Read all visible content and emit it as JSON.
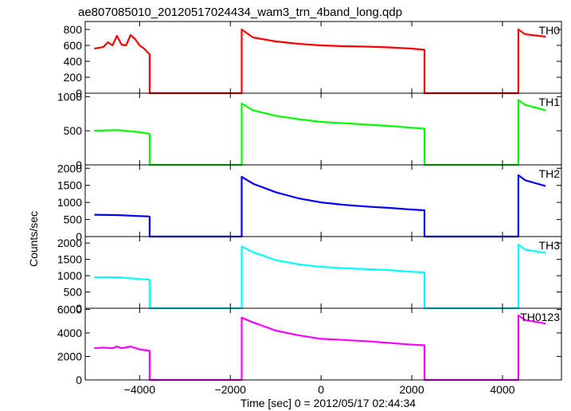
{
  "figure": {
    "title": "ae807085010_20120517024434_wam3_trn_4band_long.qdp",
    "ylabel": "Counts/sec",
    "xlabel": "Time [sec] 0 = 2012/05/17 02:44:34"
  },
  "chart_data": {
    "type": "line",
    "title": "ae807085010_20120517024434_wam3_trn_4band_long.qdp",
    "xlabel": "Time [sec] 0 = 2012/05/17 02:44:34",
    "ylabel": "Counts/sec",
    "xlim": [
      -5200,
      5300
    ],
    "xticks": [
      -4000,
      -2000,
      0,
      2000,
      4000
    ],
    "xtick_labels": [
      "−4000",
      "−2000",
      "0",
      "2000",
      "4000"
    ],
    "grid": false,
    "panels": [
      {
        "name": "TH0",
        "color": "#ff0000",
        "ylim": [
          0,
          900
        ],
        "yticks": [
          0,
          200,
          400,
          600,
          800
        ],
        "x": [
          -5000,
          -4800,
          -4700,
          -4600,
          -4500,
          -4400,
          -4300,
          -4200,
          -4100,
          -4000,
          -3900,
          -3800,
          -3780,
          -3780,
          -1750,
          -1750,
          -1500,
          -1000,
          -500,
          0,
          500,
          1000,
          1500,
          2000,
          2280,
          2280,
          4350,
          4350,
          4500,
          4950
        ],
        "y": [
          560,
          580,
          640,
          600,
          720,
          610,
          600,
          730,
          680,
          600,
          560,
          500,
          490,
          0,
          0,
          800,
          700,
          650,
          620,
          600,
          590,
          585,
          575,
          560,
          545,
          0,
          0,
          800,
          740,
          710
        ]
      },
      {
        "name": "TH1",
        "color": "#00ff00",
        "ylim": [
          0,
          1050
        ],
        "yticks": [
          0,
          500,
          1000
        ],
        "x": [
          -5000,
          -4500,
          -4000,
          -3800,
          -3780,
          -3780,
          -1750,
          -1750,
          -1500,
          -1000,
          -500,
          0,
          500,
          1000,
          1500,
          2000,
          2280,
          2280,
          4350,
          4350,
          4500,
          4950
        ],
        "y": [
          500,
          510,
          480,
          460,
          450,
          0,
          0,
          900,
          800,
          720,
          670,
          630,
          610,
          590,
          570,
          545,
          530,
          0,
          0,
          950,
          880,
          800
        ]
      },
      {
        "name": "TH2",
        "color": "#0000ff",
        "ylim": [
          0,
          2100
        ],
        "yticks": [
          0,
          500,
          1000,
          1500,
          2000
        ],
        "x": [
          -5000,
          -4500,
          -4000,
          -3800,
          -3780,
          -3780,
          -1750,
          -1750,
          -1500,
          -1000,
          -500,
          0,
          500,
          1000,
          1500,
          2000,
          2280,
          2280,
          4350,
          4350,
          4500,
          4950
        ],
        "y": [
          640,
          630,
          600,
          590,
          580,
          0,
          0,
          1750,
          1550,
          1300,
          1120,
          1000,
          930,
          880,
          840,
          790,
          770,
          0,
          0,
          1800,
          1650,
          1480
        ]
      },
      {
        "name": "TH3",
        "color": "#00ffff",
        "ylim": [
          0,
          2200
        ],
        "yticks": [
          0,
          500,
          1000,
          1500,
          2000
        ],
        "x": [
          -5000,
          -4500,
          -4000,
          -3800,
          -3780,
          -3780,
          -1750,
          -1750,
          -1500,
          -1000,
          -500,
          0,
          500,
          1000,
          1500,
          2000,
          2280,
          2280,
          4350,
          4350,
          4500,
          4950
        ],
        "y": [
          950,
          950,
          900,
          880,
          870,
          0,
          0,
          1900,
          1720,
          1480,
          1350,
          1270,
          1230,
          1200,
          1170,
          1120,
          1100,
          0,
          0,
          1950,
          1800,
          1700
        ]
      },
      {
        "name": "TH0123",
        "color": "#ff00ff",
        "ylim": [
          0,
          6100
        ],
        "yticks": [
          0,
          2000,
          4000,
          6000
        ],
        "x": [
          -5000,
          -4800,
          -4600,
          -4500,
          -4400,
          -4200,
          -4000,
          -3800,
          -3780,
          -3780,
          -1750,
          -1750,
          -1500,
          -1000,
          -500,
          0,
          500,
          1000,
          1500,
          2000,
          2280,
          2280,
          4350,
          4350,
          4500,
          4950
        ],
        "y": [
          2700,
          2750,
          2700,
          2850,
          2700,
          2850,
          2600,
          2500,
          2450,
          0,
          0,
          5300,
          4900,
          4200,
          3800,
          3500,
          3400,
          3300,
          3150,
          3000,
          2950,
          0,
          0,
          5500,
          5100,
          4800
        ]
      }
    ]
  }
}
